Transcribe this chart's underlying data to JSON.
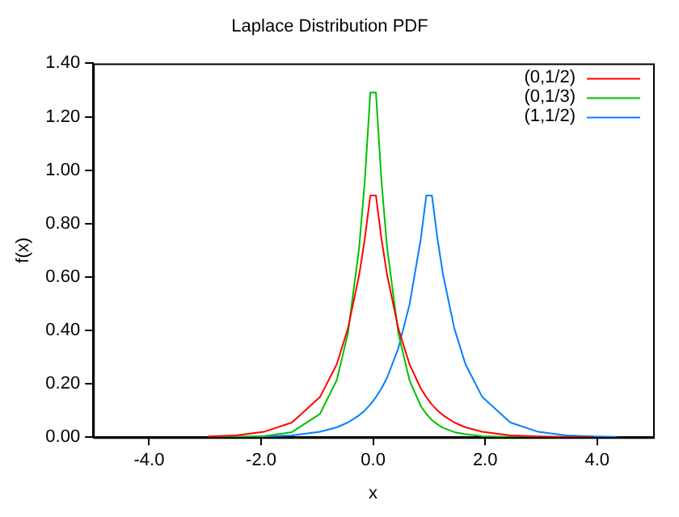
{
  "chart_data": {
    "type": "line",
    "title": "Laplace Distribution PDF",
    "xlabel": "x",
    "ylabel": "f(x)",
    "x": [
      -2.95,
      -2.45,
      -1.95,
      -1.45,
      -0.95,
      -0.65,
      -0.45,
      -0.25,
      -0.15,
      -0.05,
      0.05,
      0.15,
      0.25,
      0.45,
      0.65,
      0.85,
      0.95,
      1.05,
      1.15,
      1.25,
      1.45,
      1.65,
      1.95,
      2.45,
      2.95,
      3.45,
      3.95,
      4.35
    ],
    "series": [
      {
        "name": "(0,1/2)",
        "color": "#ff0000",
        "values": [
          0.003,
          0.007,
          0.02,
          0.055,
          0.15,
          0.273,
          0.407,
          0.607,
          0.741,
          0.905,
          0.905,
          0.741,
          0.607,
          0.407,
          0.273,
          0.183,
          0.15,
          0.122,
          0.1,
          0.082,
          0.055,
          0.037,
          0.02,
          0.007,
          0.003,
          0.001,
          0.0,
          null
        ]
      },
      {
        "name": "(0,1/3)",
        "color": "#00c000",
        "values": [
          0.0,
          0.001,
          0.004,
          0.019,
          0.087,
          0.213,
          0.389,
          0.709,
          0.956,
          1.291,
          1.291,
          0.956,
          0.709,
          0.389,
          0.213,
          0.117,
          0.087,
          0.064,
          0.048,
          0.035,
          0.019,
          0.011,
          0.004,
          0.001,
          0.0,
          null,
          null,
          null
        ]
      },
      {
        "name": "(1,1/2)",
        "color": "#0080ff",
        "values": [
          0.0,
          0.001,
          0.003,
          0.007,
          0.02,
          0.037,
          0.055,
          0.082,
          0.1,
          0.122,
          0.15,
          0.183,
          0.223,
          0.333,
          0.497,
          0.741,
          0.905,
          0.905,
          0.741,
          0.607,
          0.407,
          0.273,
          0.15,
          0.055,
          0.02,
          0.007,
          0.003,
          0.001
        ]
      }
    ],
    "xlim": [
      -5,
      5
    ],
    "xticks": [
      {
        "value": -4,
        "label": "-4.0"
      },
      {
        "value": -2,
        "label": "-2.0"
      },
      {
        "value": 0,
        "label": "0.0"
      },
      {
        "value": 2,
        "label": "2.0"
      },
      {
        "value": 4,
        "label": "4.0"
      }
    ],
    "ylim": [
      0,
      1.4
    ],
    "yticks": [
      {
        "value": 0,
        "label": "0.00"
      },
      {
        "value": 0.2,
        "label": "0.20"
      },
      {
        "value": 0.4,
        "label": "0.40"
      },
      {
        "value": 0.6,
        "label": "0.60"
      },
      {
        "value": 0.8,
        "label": "0.80"
      },
      {
        "value": 1.0,
        "label": "1.00"
      },
      {
        "value": 1.2,
        "label": "1.20"
      },
      {
        "value": 1.4,
        "label": "1.40"
      }
    ],
    "grid": false,
    "legend": "top right",
    "marker": "none",
    "line_style": "solid"
  }
}
